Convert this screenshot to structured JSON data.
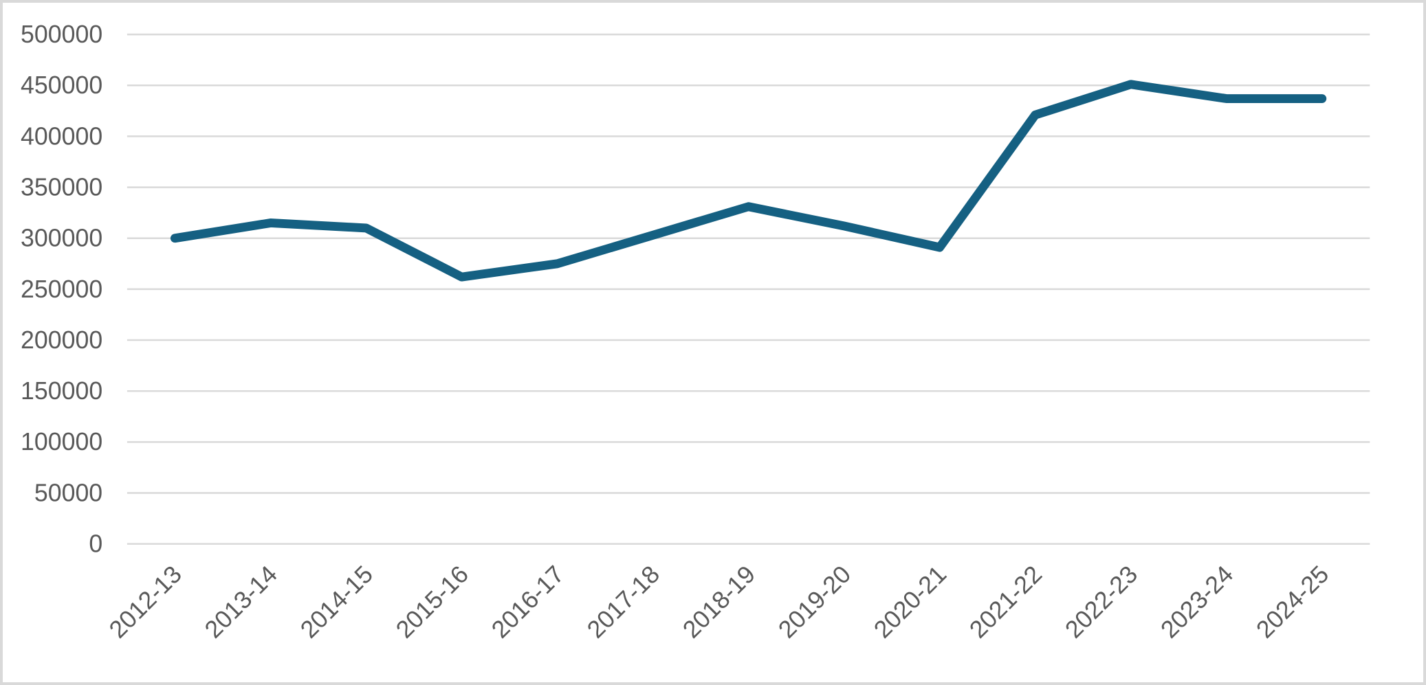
{
  "chart_data": {
    "type": "line",
    "title": "",
    "xlabel": "",
    "ylabel": "",
    "categories": [
      "2012-13",
      "2013-14",
      "2014-15",
      "2015-16",
      "2016-17",
      "2017-18",
      "2018-19",
      "2019-20",
      "2020-21",
      "2021-22",
      "2022-23",
      "2023-24",
      "2024-25"
    ],
    "values": [
      300000,
      315000,
      310000,
      262000,
      275000,
      303000,
      331000,
      312000,
      291000,
      421000,
      451000,
      437000,
      437000
    ],
    "yticks": [
      "0",
      "50000",
      "100000",
      "150000",
      "200000",
      "250000",
      "300000",
      "350000",
      "400000",
      "450000",
      "500000"
    ],
    "ylim": [
      0,
      500000
    ],
    "ytick_step": 50000,
    "grid": "horizontal",
    "legend": "none",
    "x_tick_rotation_deg": 45,
    "colors": {
      "line": "#156082",
      "gridline": "#D9D9D9",
      "tick_label": "#595959",
      "border": "#D9D9D9",
      "background": "#FFFFFF"
    }
  }
}
